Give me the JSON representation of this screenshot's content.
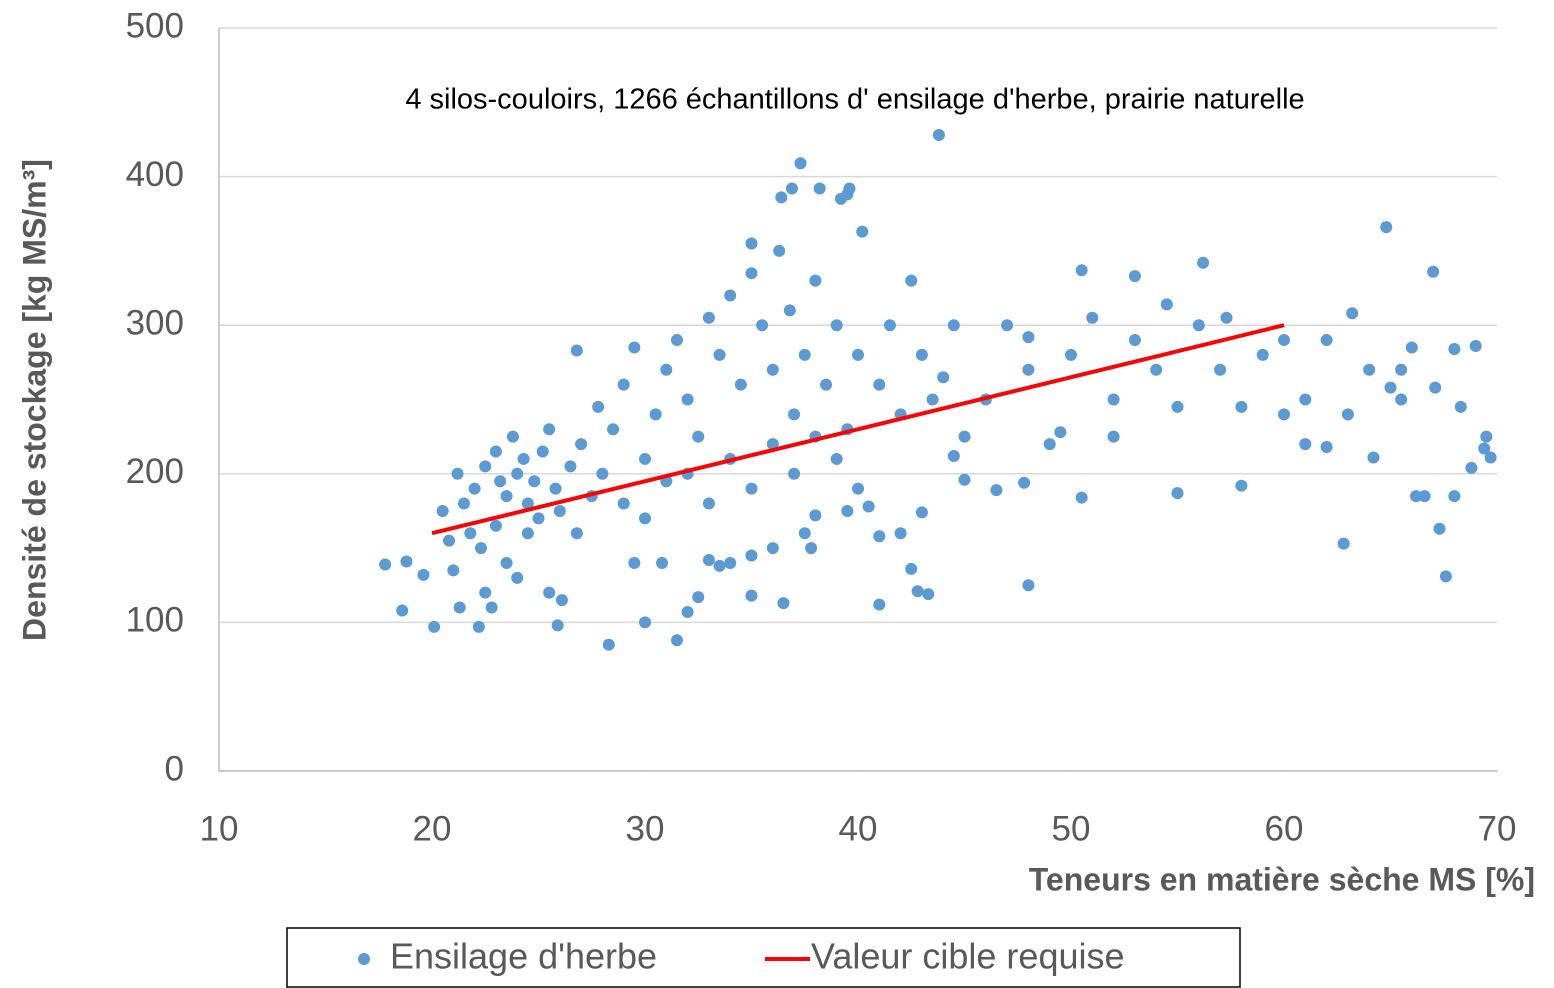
{
  "chart_data": {
    "type": "scatter",
    "annotation": "4 silos-couloirs, 1266 échantillons d' ensilage d'herbe, prairie naturelle",
    "x_label": "Teneurs en matière sèche MS [%]",
    "y_label": "Densité de stockage [kg MS/m³]",
    "xlim": [
      10,
      70
    ],
    "xticks": [
      10,
      20,
      30,
      40,
      50,
      60,
      70
    ],
    "ylim": [
      0,
      500
    ],
    "yticks": [
      0,
      100,
      200,
      300,
      400,
      500
    ],
    "grid": true,
    "legend": "bottom",
    "series": [
      {
        "name": "Ensilage d'herbe",
        "color": "#5b9bd5",
        "x": [
          17.8,
          18.6,
          18.8,
          19.6,
          20.1,
          20.5,
          21,
          21.3,
          22.2,
          22.5,
          22.8,
          23.5,
          24,
          25.5,
          25.9,
          26.1,
          28.3,
          30,
          31.5,
          32,
          32.5,
          33.5,
          35,
          36.5,
          37.8,
          41,
          42.5,
          42.8,
          43.3,
          48,
          43.8,
          37.3,
          36.4,
          36.9,
          38.2,
          39.5,
          39.6,
          39.2,
          35,
          40.2,
          48,
          50.5,
          53,
          56.2,
          54.5,
          57.3,
          60,
          61,
          62,
          62.8,
          63.2,
          64.2,
          64.8,
          65,
          65.5,
          66.2,
          66.6,
          67,
          67.1,
          67.3,
          67.6,
          68,
          68,
          68.3,
          68.8,
          69,
          69.4,
          69.7,
          69.5,
          58,
          55,
          52,
          50.5,
          49.5,
          46.5,
          47.8,
          45,
          44.5,
          43,
          42,
          41,
          40.5,
          39.5,
          38,
          37.5,
          36,
          35,
          34,
          33,
          30.8,
          29.5,
          22,
          22.5,
          23,
          23.2,
          23.5,
          23.8,
          24,
          24.3,
          24.5,
          24.8,
          25,
          25.2,
          25.5,
          25.8,
          26,
          26.5,
          26.8,
          27,
          27.5,
          27.8,
          28,
          21.5,
          21.8,
          22.3,
          23,
          24.5,
          20.8,
          21.2,
          26.8,
          28.5,
          29,
          29.5,
          30,
          30.5,
          31,
          31.5,
          32,
          32.5,
          33,
          33.5,
          34,
          34.5,
          35,
          35.5,
          36,
          36.3,
          36.8,
          37,
          37.5,
          38,
          38.5,
          39,
          39.5,
          40,
          29,
          30,
          31,
          32,
          33,
          34,
          35,
          36,
          37,
          38,
          39,
          40,
          41,
          41.5,
          42,
          42.5,
          43,
          43.5,
          44,
          44.5,
          45,
          46,
          47,
          48,
          49,
          50,
          51,
          52,
          53,
          54,
          55,
          56,
          57,
          58,
          59,
          60,
          61,
          62,
          63,
          64,
          65.5,
          66
        ],
        "values": [
          139,
          108,
          141,
          132,
          97,
          175,
          135,
          110,
          97,
          120,
          110,
          140,
          130,
          120,
          98,
          115,
          85,
          100,
          88,
          107,
          117,
          138,
          118,
          113,
          150,
          112,
          136,
          121,
          119,
          125,
          428,
          409,
          386,
          392,
          392,
          388,
          392,
          385,
          355,
          363,
          292,
          337,
          333,
          342,
          314,
          305,
          290,
          250,
          218,
          153,
          308,
          211,
          366,
          258,
          270,
          185,
          185,
          336,
          258,
          163,
          131,
          284,
          185,
          245,
          204,
          286,
          217,
          211,
          225,
          192,
          187,
          225,
          184,
          228,
          189,
          194,
          196,
          212,
          174,
          160,
          158,
          178,
          175,
          172,
          160,
          150,
          145,
          140,
          142,
          140,
          140,
          190,
          205,
          215,
          195,
          185,
          225,
          200,
          210,
          180,
          195,
          170,
          215,
          230,
          190,
          175,
          205,
          160,
          220,
          185,
          245,
          200,
          180,
          160,
          150,
          165,
          160,
          155,
          200,
          283,
          230,
          260,
          285,
          210,
          240,
          270,
          290,
          250,
          225,
          305,
          280,
          320,
          260,
          335,
          300,
          270,
          350,
          310,
          240,
          280,
          330,
          260,
          300,
          230,
          280,
          180,
          170,
          195,
          200,
          180,
          210,
          190,
          220,
          200,
          225,
          210,
          190,
          260,
          300,
          240,
          330,
          280,
          250,
          265,
          300,
          225,
          250,
          300,
          270,
          220,
          280,
          305,
          250,
          290,
          270,
          245,
          300,
          270,
          245,
          280,
          240,
          220,
          290,
          240,
          270,
          250,
          285
        ]
      },
      {
        "name": "Valeur cible requise",
        "color": "#ff0000",
        "type": "line",
        "x": [
          20,
          60
        ],
        "values": [
          160,
          300
        ]
      }
    ]
  }
}
